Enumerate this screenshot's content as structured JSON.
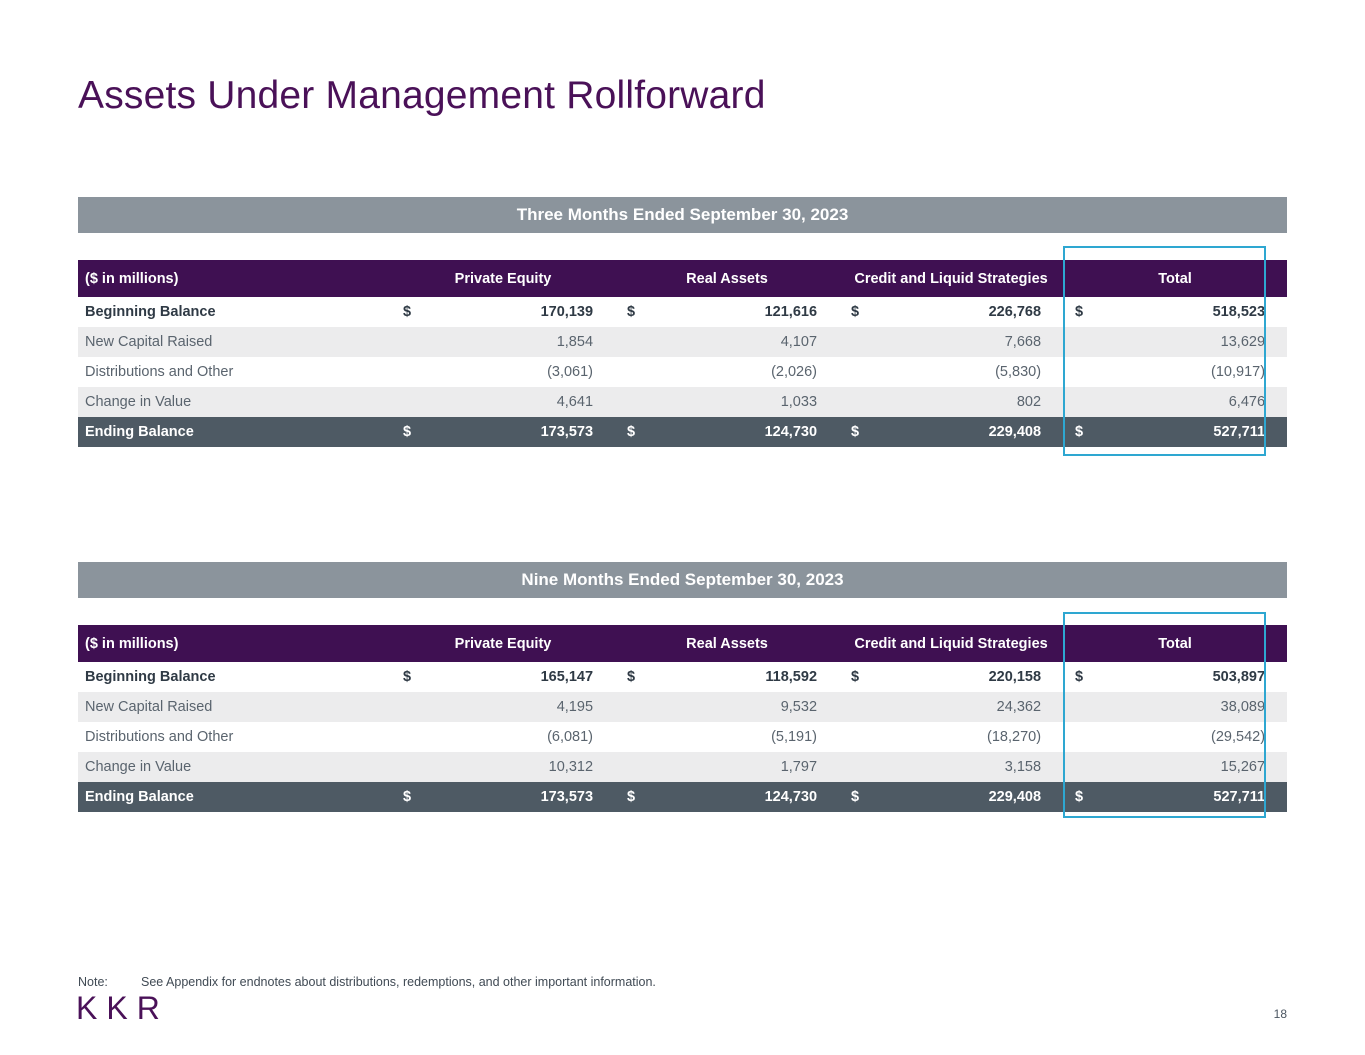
{
  "page": {
    "title": "Assets Under Management Rollforward",
    "note_label": "Note:",
    "note_text": "See Appendix for endnotes about distributions, redemptions, and other important information.",
    "logo_text": "KKR",
    "page_number": "18"
  },
  "colors": {
    "title_purple": "#4a1158",
    "band_gray": "#8b949c",
    "header_purple": "#3f1052",
    "ending_row_slate": "#4e5a64",
    "alt_row_gray": "#ececed",
    "highlight_teal": "#2ea7d1"
  },
  "tables": [
    {
      "band_title": "Three Months Ended September 30, 2023",
      "columns": {
        "label_header": "($ in millions)",
        "groups": [
          "Private Equity",
          "Real Assets",
          "Credit and Liquid Strategies",
          "Total"
        ]
      },
      "rows": [
        {
          "label": "Beginning Balance",
          "cells": [
            {
              "d": "$",
              "v": "170,139"
            },
            {
              "d": "$",
              "v": "121,616"
            },
            {
              "d": "$",
              "v": "226,768"
            },
            {
              "d": "$",
              "v": "518,523"
            }
          ]
        },
        {
          "label": "New Capital Raised",
          "cells": [
            {
              "d": "",
              "v": "1,854"
            },
            {
              "d": "",
              "v": "4,107"
            },
            {
              "d": "",
              "v": "7,668"
            },
            {
              "d": "",
              "v": "13,629"
            }
          ]
        },
        {
          "label": "Distributions and Other",
          "cells": [
            {
              "d": "",
              "v": "(3,061)"
            },
            {
              "d": "",
              "v": "(2,026)"
            },
            {
              "d": "",
              "v": "(5,830)"
            },
            {
              "d": "",
              "v": "(10,917)"
            }
          ]
        },
        {
          "label": "Change in Value",
          "cells": [
            {
              "d": "",
              "v": "4,641"
            },
            {
              "d": "",
              "v": "1,033"
            },
            {
              "d": "",
              "v": "802"
            },
            {
              "d": "",
              "v": "6,476"
            }
          ]
        },
        {
          "label": "Ending Balance",
          "cells": [
            {
              "d": "$",
              "v": "173,573"
            },
            {
              "d": "$",
              "v": "124,730"
            },
            {
              "d": "$",
              "v": "229,408"
            },
            {
              "d": "$",
              "v": "527,711"
            }
          ]
        }
      ]
    },
    {
      "band_title": "Nine Months Ended September 30, 2023",
      "columns": {
        "label_header": "($ in millions)",
        "groups": [
          "Private Equity",
          "Real Assets",
          "Credit and Liquid Strategies",
          "Total"
        ]
      },
      "rows": [
        {
          "label": "Beginning Balance",
          "cells": [
            {
              "d": "$",
              "v": "165,147"
            },
            {
              "d": "$",
              "v": "118,592"
            },
            {
              "d": "$",
              "v": "220,158"
            },
            {
              "d": "$",
              "v": "503,897"
            }
          ]
        },
        {
          "label": "New Capital Raised",
          "cells": [
            {
              "d": "",
              "v": "4,195"
            },
            {
              "d": "",
              "v": "9,532"
            },
            {
              "d": "",
              "v": "24,362"
            },
            {
              "d": "",
              "v": "38,089"
            }
          ]
        },
        {
          "label": "Distributions and Other",
          "cells": [
            {
              "d": "",
              "v": "(6,081)"
            },
            {
              "d": "",
              "v": "(5,191)"
            },
            {
              "d": "",
              "v": "(18,270)"
            },
            {
              "d": "",
              "v": "(29,542)"
            }
          ]
        },
        {
          "label": "Change in Value",
          "cells": [
            {
              "d": "",
              "v": "10,312"
            },
            {
              "d": "",
              "v": "1,797"
            },
            {
              "d": "",
              "v": "3,158"
            },
            {
              "d": "",
              "v": "15,267"
            }
          ]
        },
        {
          "label": "Ending Balance",
          "cells": [
            {
              "d": "$",
              "v": "173,573"
            },
            {
              "d": "$",
              "v": "124,730"
            },
            {
              "d": "$",
              "v": "229,408"
            },
            {
              "d": "$",
              "v": "527,711"
            }
          ]
        }
      ]
    }
  ]
}
